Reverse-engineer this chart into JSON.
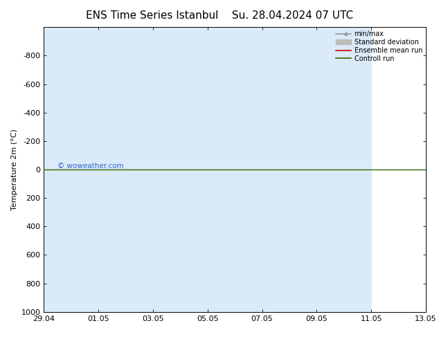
{
  "title_left": "ENS Time Series Istanbul",
  "title_right": "Su. 28.04.2024 07 UTC",
  "ylabel": "Temperature 2m (°C)",
  "ylim_bottom": 1000,
  "ylim_top": -1000,
  "yticks": [
    -800,
    -600,
    -400,
    -200,
    0,
    200,
    400,
    600,
    800,
    1000
  ],
  "xtick_labels": [
    "29.04",
    "01.05",
    "03.05",
    "05.05",
    "07.05",
    "09.05",
    "11.05",
    "13.05"
  ],
  "xtick_positions": [
    0,
    2,
    4,
    6,
    8,
    10,
    12,
    14
  ],
  "xlim": [
    0,
    14
  ],
  "bg_color": "#ffffff",
  "blue_band_color": "#daeaf8",
  "blue_bands": [
    [
      0.0,
      1.0
    ],
    [
      6.0,
      0.65
    ],
    [
      6.65,
      0.65
    ],
    [
      12.0,
      2.0
    ]
  ],
  "green_line_y": 0,
  "green_line_color": "#336600",
  "red_line_color": "#cc0000",
  "minmax_color": "#999999",
  "stddev_color": "#bbbbbb",
  "watermark": "© woweather.com",
  "watermark_color": "#3366cc",
  "legend_labels": [
    "min/max",
    "Standard deviation",
    "Ensemble mean run",
    "Controll run"
  ],
  "legend_colors": [
    "#999999",
    "#bbbbbb",
    "#cc0000",
    "#336600"
  ],
  "font_size": 8,
  "title_font_size": 11
}
